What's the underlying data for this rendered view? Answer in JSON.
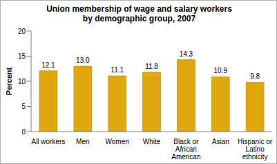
{
  "chart_data": {
    "type": "bar",
    "title": "Union membership of wage and salary workers by demographic group, 2007",
    "y_label": "Percent",
    "categories": [
      "All workers",
      "Men",
      "Women",
      "White",
      "Black or African American",
      "Asian",
      "Hispanic or Latino ethnicity"
    ],
    "values": [
      12.1,
      13.0,
      11.1,
      11.8,
      14.3,
      10.9,
      9.8
    ],
    "value_labels": [
      "12.1",
      "13.0",
      "11.1",
      "11.8",
      "14.3",
      "10.9",
      "9.8"
    ],
    "data_labels": true,
    "color": "#e0a810",
    "ylim": [
      0,
      20
    ],
    "yticks": [
      0,
      5,
      10,
      15,
      20
    ],
    "grid": false
  }
}
